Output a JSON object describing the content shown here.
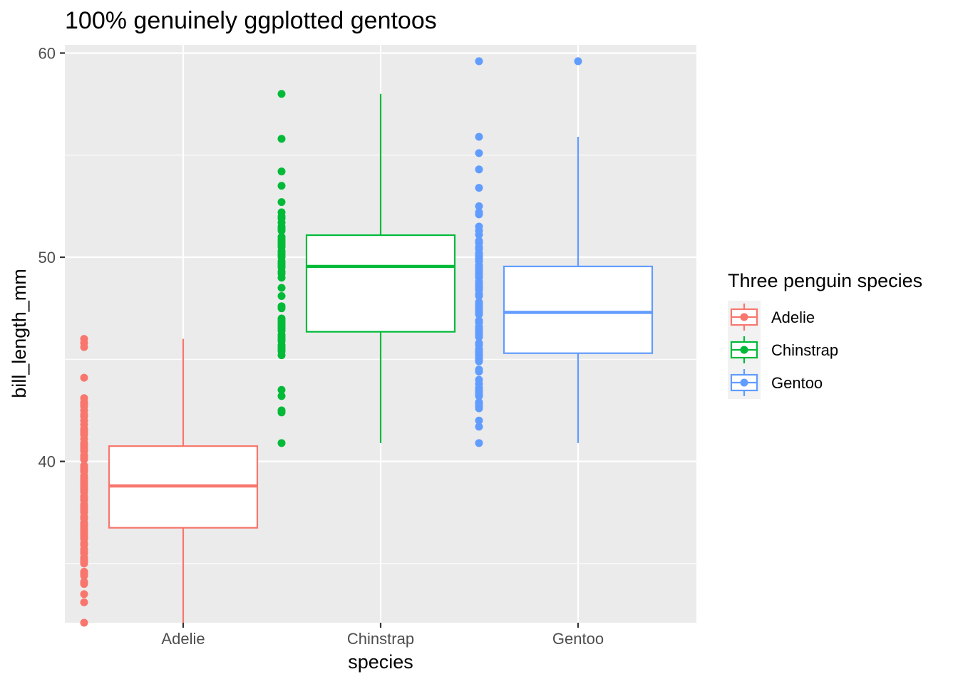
{
  "chart_data": {
    "type": "boxplot",
    "title": "100% genuinely ggplotted gentoos",
    "xlabel": "species",
    "ylabel": "bill_length_mm",
    "categories": [
      "Adelie",
      "Chinstrap",
      "Gentoo"
    ],
    "ylim": [
      32.1,
      60.4
    ],
    "yticks": [
      40,
      50,
      60
    ],
    "yticks_minor": [
      35,
      45,
      55
    ],
    "grid": true,
    "legend": {
      "title": "Three penguin species",
      "placement": "right",
      "entries": [
        "Adelie",
        "Chinstrap",
        "Gentoo"
      ]
    },
    "series": [
      {
        "category": "Adelie",
        "color": "#F8766D",
        "min": 32.1,
        "q1": 36.75,
        "median": 38.8,
        "q3": 40.75,
        "max": 46.0,
        "points": [
          32.1,
          33.1,
          33.5,
          34.0,
          34.1,
          34.4,
          34.5,
          34.6,
          35.0,
          35.1,
          35.2,
          35.3,
          35.5,
          35.6,
          35.7,
          35.9,
          36.0,
          36.2,
          36.3,
          36.4,
          36.5,
          36.6,
          36.7,
          36.8,
          36.9,
          37.0,
          37.2,
          37.3,
          37.5,
          37.6,
          37.7,
          37.8,
          37.9,
          38.1,
          38.2,
          38.3,
          38.5,
          38.6,
          38.7,
          38.8,
          38.9,
          39.0,
          39.1,
          39.2,
          39.3,
          39.5,
          39.6,
          39.7,
          39.8,
          40.1,
          40.2,
          40.3,
          40.5,
          40.6,
          40.7,
          40.8,
          40.9,
          41.1,
          41.3,
          41.4,
          41.5,
          41.6,
          41.8,
          42.0,
          42.2,
          42.3,
          42.5,
          42.7,
          42.8,
          42.9,
          43.1,
          44.1,
          45.6,
          45.8,
          46.0
        ]
      },
      {
        "category": "Chinstrap",
        "color": "#00BA38",
        "min": 40.9,
        "q1": 46.35,
        "median": 49.55,
        "q3": 51.08,
        "max": 58.0,
        "points": [
          40.9,
          42.4,
          42.5,
          43.2,
          43.5,
          45.2,
          45.4,
          45.5,
          45.6,
          45.7,
          45.9,
          46.0,
          46.1,
          46.2,
          46.4,
          46.5,
          46.6,
          46.7,
          46.8,
          46.9,
          47.0,
          47.5,
          47.6,
          48.1,
          48.5,
          49.0,
          49.2,
          49.3,
          49.5,
          49.6,
          49.7,
          49.8,
          50.0,
          50.1,
          50.2,
          50.3,
          50.5,
          50.6,
          50.7,
          50.8,
          50.9,
          51.0,
          51.3,
          51.4,
          51.5,
          51.7,
          51.9,
          52.0,
          52.2,
          52.7,
          53.5,
          54.2,
          55.8,
          58.0
        ]
      },
      {
        "category": "Gentoo",
        "color": "#619CFF",
        "min": 40.9,
        "q1": 45.3,
        "median": 47.3,
        "q3": 49.55,
        "max": 55.9,
        "points": [
          40.9,
          41.7,
          42.0,
          42.6,
          42.7,
          42.8,
          42.9,
          43.2,
          43.3,
          43.4,
          43.5,
          43.6,
          43.8,
          44.0,
          44.4,
          44.5,
          44.9,
          45.0,
          45.1,
          45.2,
          45.3,
          45.4,
          45.5,
          45.7,
          45.8,
          46.1,
          46.2,
          46.3,
          46.4,
          46.5,
          46.6,
          46.8,
          46.9,
          47.2,
          47.3,
          47.4,
          47.5,
          47.6,
          47.7,
          47.8,
          48.1,
          48.2,
          48.4,
          48.5,
          48.6,
          48.7,
          48.8,
          49.0,
          49.1,
          49.2,
          49.3,
          49.4,
          49.5,
          49.6,
          49.8,
          49.9,
          50.0,
          50.1,
          50.2,
          50.4,
          50.5,
          50.7,
          50.8,
          51.1,
          51.3,
          51.5,
          52.1,
          52.2,
          52.5,
          53.4,
          54.3,
          55.1,
          55.9,
          59.6
        ],
        "outliers": [
          59.6
        ]
      }
    ]
  }
}
